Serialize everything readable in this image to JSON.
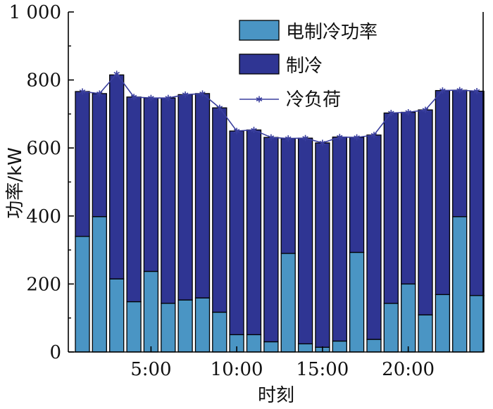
{
  "chart_data": {
    "type": "bar",
    "stacked": true,
    "categories": [
      1,
      2,
      3,
      4,
      5,
      6,
      7,
      8,
      9,
      10,
      11,
      12,
      13,
      14,
      15,
      16,
      17,
      18,
      19,
      20,
      21,
      22,
      23,
      24
    ],
    "series": [
      {
        "name": "电制冷功率",
        "color": "#4a95c4",
        "values": [
          340,
          398,
          215,
          148,
          237,
          143,
          153,
          159,
          117,
          51,
          51,
          30,
          290,
          24,
          14,
          32,
          293,
          37,
          143,
          200,
          109,
          169,
          398,
          166
        ]
      },
      {
        "name": "制冷",
        "color": "#2f3593",
        "values": [
          426,
          362,
          600,
          602,
          510,
          604,
          604,
          601,
          601,
          599,
          602,
          601,
          338,
          605,
          601,
          600,
          338,
          601,
          560,
          505,
          603,
          600,
          372,
          601
        ]
      }
    ],
    "line": {
      "name": "冷负荷",
      "color": "#3a3f9e",
      "marker": "asterisk",
      "values": [
        766,
        760,
        818,
        750,
        747,
        747,
        757,
        760,
        718,
        650,
        653,
        631,
        628,
        629,
        615,
        632,
        631,
        638,
        703,
        705,
        712,
        769,
        770,
        767
      ]
    },
    "xlabel": "时刻",
    "ylabel": "功率/kW",
    "ylim": [
      0,
      1000
    ],
    "yticks": [
      {
        "value": 0,
        "label": "0"
      },
      {
        "value": 200,
        "label": "200"
      },
      {
        "value": 400,
        "label": "400"
      },
      {
        "value": 600,
        "label": "600"
      },
      {
        "value": 800,
        "label": "800"
      },
      {
        "value": 1000,
        "label": "1 000"
      }
    ],
    "xticks": [
      {
        "value": 5,
        "label": "5:00"
      },
      {
        "value": 10,
        "label": "10:00"
      },
      {
        "value": 15,
        "label": "15:00"
      },
      {
        "value": 20,
        "label": "20:00"
      }
    ],
    "legend": "top-right",
    "grid": false
  }
}
